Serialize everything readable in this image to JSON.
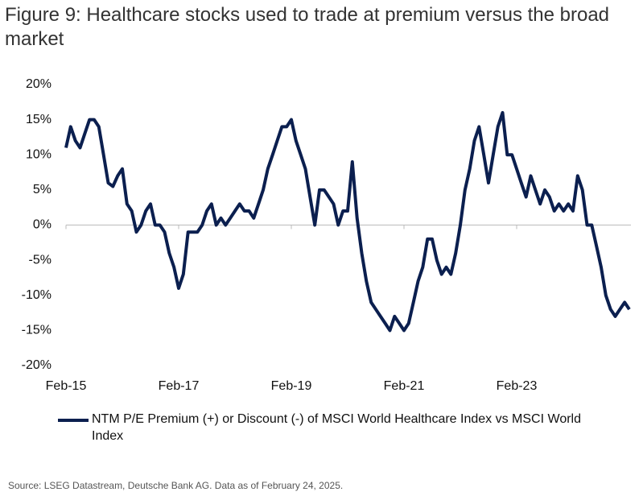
{
  "chart_data": {
    "type": "line",
    "title": "Figure 9: Healthcare stocks used to trade at premium versus the broad market",
    "source": "Source: LSEG Datastream, Deutsche Bank AG. Data as of February 24, 2025.",
    "x": [
      "2015-02",
      "2015-03",
      "2015-04",
      "2015-05",
      "2015-06",
      "2015-07",
      "2015-08",
      "2015-09",
      "2015-10",
      "2015-11",
      "2015-12",
      "2016-01",
      "2016-02",
      "2016-03",
      "2016-04",
      "2016-05",
      "2016-06",
      "2016-07",
      "2016-08",
      "2016-09",
      "2016-10",
      "2016-11",
      "2016-12",
      "2017-01",
      "2017-02",
      "2017-03",
      "2017-04",
      "2017-05",
      "2017-06",
      "2017-07",
      "2017-08",
      "2017-09",
      "2017-10",
      "2017-11",
      "2017-12",
      "2018-01",
      "2018-02",
      "2018-03",
      "2018-04",
      "2018-05",
      "2018-06",
      "2018-07",
      "2018-08",
      "2018-09",
      "2018-10",
      "2018-11",
      "2018-12",
      "2019-01",
      "2019-02",
      "2019-03",
      "2019-04",
      "2019-05",
      "2019-06",
      "2019-07",
      "2019-08",
      "2019-09",
      "2019-10",
      "2019-11",
      "2019-12",
      "2020-01",
      "2020-02",
      "2020-03",
      "2020-04",
      "2020-05",
      "2020-06",
      "2020-07",
      "2020-08",
      "2020-09",
      "2020-10",
      "2020-11",
      "2020-12",
      "2021-01",
      "2021-02",
      "2021-03",
      "2021-04",
      "2021-05",
      "2021-06",
      "2021-07",
      "2021-08",
      "2021-09",
      "2021-10",
      "2021-11",
      "2021-12",
      "2022-01",
      "2022-02",
      "2022-03",
      "2022-04",
      "2022-05",
      "2022-06",
      "2022-07",
      "2022-08",
      "2022-09",
      "2022-10",
      "2022-11",
      "2022-12",
      "2023-01",
      "2023-02",
      "2023-03",
      "2023-04",
      "2023-05",
      "2023-06",
      "2023-07",
      "2023-08",
      "2023-09",
      "2023-10",
      "2023-11",
      "2023-12",
      "2024-01",
      "2024-02",
      "2024-03",
      "2024-04",
      "2024-05",
      "2024-06",
      "2024-07",
      "2024-08",
      "2024-09",
      "2024-10",
      "2024-11",
      "2024-12",
      "2025-01",
      "2025-02"
    ],
    "series": [
      {
        "name": "NTM P/E Premium (+) or Discount (-) of MSCI World Healthcare Index vs MSCI World Index",
        "color": "#0b1f4f",
        "values": [
          11,
          14,
          12,
          11,
          13,
          15,
          15,
          14,
          10,
          6,
          5.5,
          7,
          8,
          3,
          2,
          -1,
          0,
          2,
          3,
          0,
          0,
          -1,
          -4,
          -6,
          -9,
          -7,
          -1,
          -1,
          -1,
          0,
          2,
          3,
          0,
          1,
          0,
          1,
          2,
          3,
          2,
          2,
          1,
          3,
          5,
          8,
          10,
          12,
          14,
          14,
          15,
          12,
          10,
          8,
          4,
          0,
          5,
          5,
          4,
          3,
          0,
          2,
          2,
          9,
          1,
          -4,
          -8,
          -11,
          -12,
          -13,
          -14,
          -15,
          -13,
          -14,
          -15,
          -14,
          -11,
          -8,
          -6,
          -2,
          -2,
          -5,
          -7,
          -6,
          -7,
          -4,
          0,
          5,
          8,
          12,
          14,
          10,
          6,
          10,
          14,
          16,
          10,
          10,
          8,
          6,
          4,
          7,
          5,
          3,
          5,
          4,
          2,
          3,
          2,
          3,
          2,
          7,
          5,
          0,
          0,
          -3,
          -6,
          -10,
          -12,
          -13,
          -12,
          -11,
          -12
        ]
      }
    ],
    "xticks": [
      {
        "value": "2015-02",
        "label": "Feb-15"
      },
      {
        "value": "2017-02",
        "label": "Feb-17"
      },
      {
        "value": "2019-02",
        "label": "Feb-19"
      },
      {
        "value": "2021-02",
        "label": "Feb-21"
      },
      {
        "value": "2023-02",
        "label": "Feb-23"
      }
    ],
    "ylim": [
      -20,
      20
    ],
    "yticks": [
      {
        "value": 20,
        "label": "20%"
      },
      {
        "value": 15,
        "label": "15%"
      },
      {
        "value": 10,
        "label": "10%"
      },
      {
        "value": 5,
        "label": "5%"
      },
      {
        "value": 0,
        "label": "0%"
      },
      {
        "value": -5,
        "label": "-5%"
      },
      {
        "value": -10,
        "label": "-10%"
      },
      {
        "value": -15,
        "label": "-15%"
      },
      {
        "value": -20,
        "label": "-20%"
      }
    ]
  }
}
